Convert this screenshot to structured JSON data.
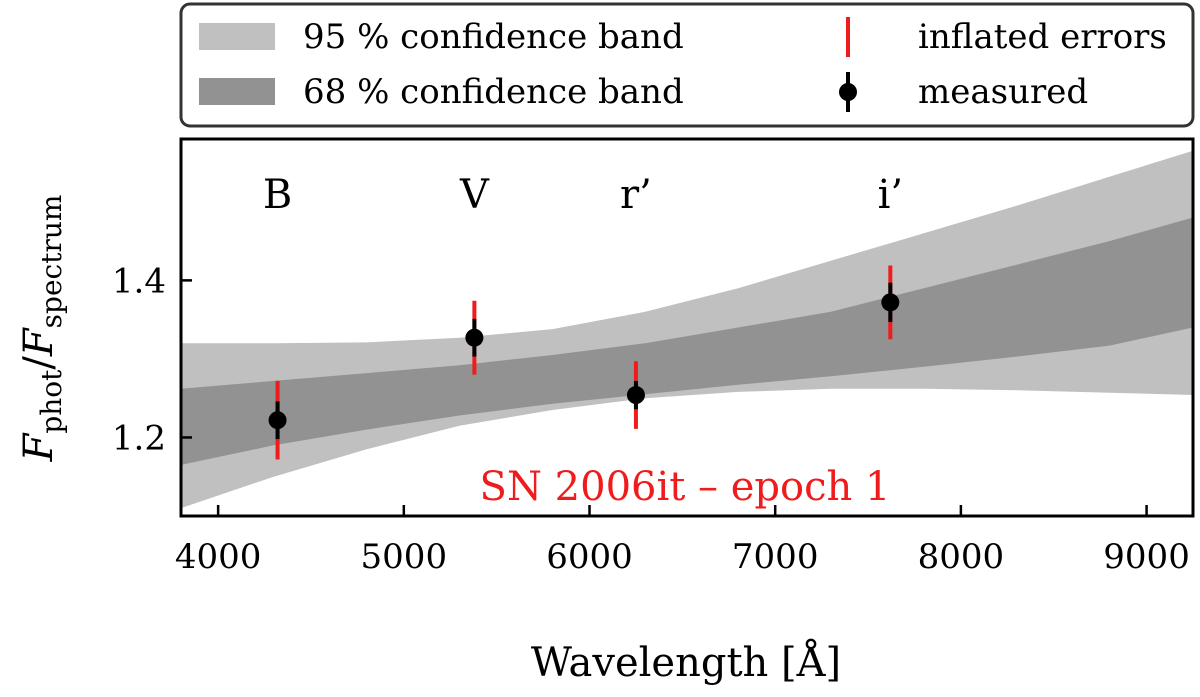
{
  "chart_data": {
    "type": "scatter",
    "title": "",
    "annotation": "SN 2006it – epoch 1",
    "xlabel": "Wavelength [Å]",
    "ylabel": {
      "main": "F",
      "num_sub": "phot",
      "sep": "/",
      "den": "F",
      "den_sub": "spectrum"
    },
    "xlim": [
      3800,
      9250
    ],
    "ylim": [
      1.1,
      1.58
    ],
    "x_ticks": [
      4000,
      5000,
      6000,
      7000,
      8000,
      9000
    ],
    "y_ticks": [
      1.2,
      1.4
    ],
    "y_tick_labels": [
      "1.2",
      "1.4"
    ],
    "grid": false,
    "legend_position": "above-plot",
    "legend": [
      {
        "key": "band95",
        "label": "95 % confidence band"
      },
      {
        "key": "band68",
        "label": "68 % confidence band"
      },
      {
        "key": "inflated",
        "label": "inflated errors"
      },
      {
        "key": "measured",
        "label": "measured"
      }
    ],
    "colors": {
      "band95": "#c0c0c0",
      "band68": "#929292",
      "inflated": "#ee1c1c",
      "measured": "#000000",
      "annotation": "#ee1c1c"
    },
    "bands": {
      "x": [
        3800,
        4300,
        4800,
        5300,
        5800,
        6300,
        6800,
        7300,
        7800,
        8300,
        8800,
        9250
      ],
      "band95_lower": [
        1.11,
        1.15,
        1.185,
        1.215,
        1.235,
        1.25,
        1.258,
        1.262,
        1.262,
        1.26,
        1.257,
        1.254
      ],
      "band95_upper": [
        1.32,
        1.32,
        1.321,
        1.327,
        1.338,
        1.36,
        1.39,
        1.425,
        1.46,
        1.495,
        1.532,
        1.565
      ],
      "band68_lower": [
        1.165,
        1.19,
        1.21,
        1.228,
        1.243,
        1.255,
        1.267,
        1.278,
        1.29,
        1.303,
        1.317,
        1.34
      ],
      "band68_upper": [
        1.262,
        1.272,
        1.282,
        1.292,
        1.305,
        1.32,
        1.34,
        1.36,
        1.39,
        1.42,
        1.45,
        1.48
      ]
    },
    "points": [
      {
        "filter": "B",
        "x": 4320,
        "y": 1.222,
        "err_measured": 0.024,
        "err_inflated": 0.05
      },
      {
        "filter": "V",
        "x": 5380,
        "y": 1.327,
        "err_measured": 0.024,
        "err_inflated": 0.047
      },
      {
        "filter": "r’",
        "x": 6250,
        "y": 1.254,
        "err_measured": 0.018,
        "err_inflated": 0.043
      },
      {
        "filter": "i’",
        "x": 7620,
        "y": 1.372,
        "err_measured": 0.025,
        "err_inflated": 0.047
      }
    ]
  }
}
